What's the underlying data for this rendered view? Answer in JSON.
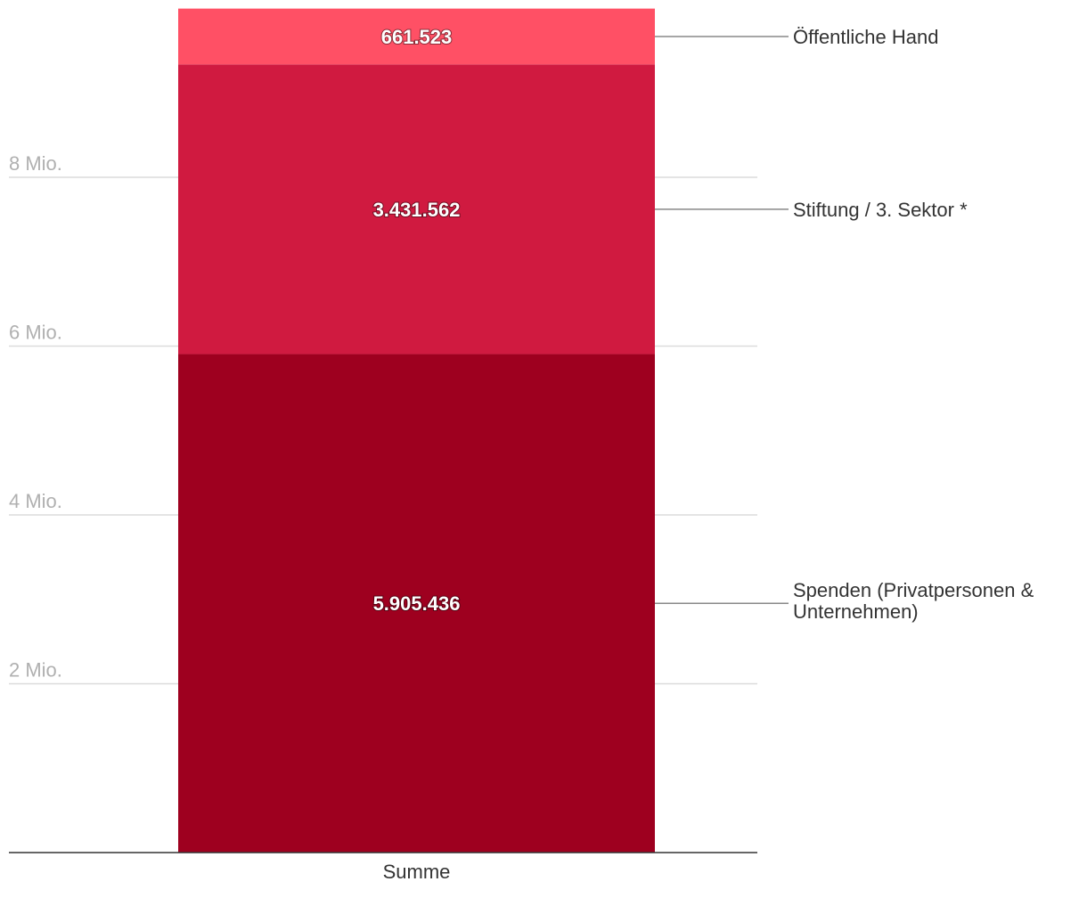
{
  "chart_data": {
    "type": "bar",
    "stacked": true,
    "categories": [
      "Summe"
    ],
    "series": [
      {
        "name": "Spenden (Privatpersonen & Unternehmen)",
        "name_lines": [
          "Spenden (Privatpersonen &",
          "Unternehmen)"
        ],
        "values": [
          5905436
        ],
        "value_label": "5.905.436",
        "color": "#9e001f"
      },
      {
        "name": "Stiftung / 3. Sektor *",
        "name_lines": [
          "Stiftung / 3. Sektor *"
        ],
        "values": [
          3431562
        ],
        "value_label": "3.431.562",
        "color": "#d01a40"
      },
      {
        "name": "Öffentliche Hand",
        "name_lines": [
          "Öffentliche Hand"
        ],
        "values": [
          661523
        ],
        "value_label": "661.523",
        "color": "#ff5065"
      }
    ],
    "yticks": [
      {
        "value": 2000000,
        "label": "2 Mio."
      },
      {
        "value": 4000000,
        "label": "4 Mio."
      },
      {
        "value": 6000000,
        "label": "6 Mio."
      },
      {
        "value": 8000000,
        "label": "8 Mio."
      }
    ],
    "ylim": [
      0,
      10000000
    ],
    "grid": true,
    "legend": "right, direct labels with leader lines",
    "title": "",
    "xlabel": "",
    "ylabel": ""
  }
}
